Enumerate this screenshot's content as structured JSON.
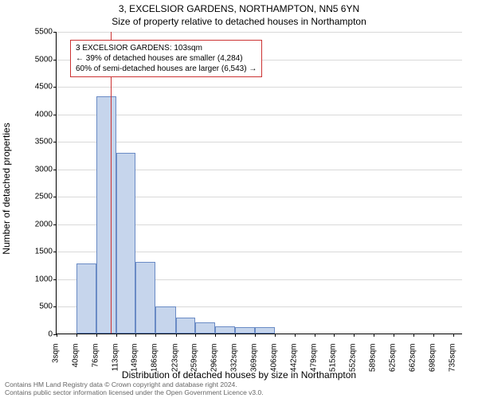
{
  "title_main": "3, EXCELSIOR GARDENS, NORTHAMPTON, NN5 6YN",
  "title_sub": "Size of property relative to detached houses in Northampton",
  "ylabel": "Number of detached properties",
  "xlabel": "Distribution of detached houses by size in Northampton",
  "footer_line1": "Contains HM Land Registry data © Crown copyright and database right 2024.",
  "footer_line2": "Contains public sector information licensed under the Open Government Licence v3.0.",
  "chart": {
    "type": "histogram",
    "background_color": "#ffffff",
    "grid_color": "#d9d9d9",
    "bar_fill": "#c6d5ec",
    "bar_border": "#6a8bc5",
    "ref_line_color": "#cc3333",
    "ref_line_x": 103,
    "ylim": [
      0,
      5500
    ],
    "ytick_step": 500,
    "yticks": [
      0,
      500,
      1000,
      1500,
      2000,
      2500,
      3000,
      3500,
      4000,
      4500,
      5000,
      5500
    ],
    "xlim": [
      3,
      753
    ],
    "xticks": [
      {
        "pos": 3,
        "label": "3sqm"
      },
      {
        "pos": 40,
        "label": "40sqm"
      },
      {
        "pos": 76,
        "label": "76sqm"
      },
      {
        "pos": 113,
        "label": "113sqm"
      },
      {
        "pos": 149,
        "label": "149sqm"
      },
      {
        "pos": 186,
        "label": "186sqm"
      },
      {
        "pos": 223,
        "label": "223sqm"
      },
      {
        "pos": 259,
        "label": "259sqm"
      },
      {
        "pos": 296,
        "label": "296sqm"
      },
      {
        "pos": 332,
        "label": "332sqm"
      },
      {
        "pos": 369,
        "label": "369sqm"
      },
      {
        "pos": 406,
        "label": "406sqm"
      },
      {
        "pos": 442,
        "label": "442sqm"
      },
      {
        "pos": 479,
        "label": "479sqm"
      },
      {
        "pos": 515,
        "label": "515sqm"
      },
      {
        "pos": 552,
        "label": "552sqm"
      },
      {
        "pos": 589,
        "label": "589sqm"
      },
      {
        "pos": 625,
        "label": "625sqm"
      },
      {
        "pos": 662,
        "label": "662sqm"
      },
      {
        "pos": 698,
        "label": "698sqm"
      },
      {
        "pos": 735,
        "label": "735sqm"
      }
    ],
    "bars": [
      {
        "x0": 40,
        "x1": 76,
        "value": 1280
      },
      {
        "x0": 76,
        "x1": 113,
        "value": 4320
      },
      {
        "x0": 113,
        "x1": 149,
        "value": 3280
      },
      {
        "x0": 149,
        "x1": 186,
        "value": 1300
      },
      {
        "x0": 186,
        "x1": 223,
        "value": 490
      },
      {
        "x0": 223,
        "x1": 259,
        "value": 290
      },
      {
        "x0": 259,
        "x1": 296,
        "value": 200
      },
      {
        "x0": 296,
        "x1": 332,
        "value": 130
      },
      {
        "x0": 332,
        "x1": 369,
        "value": 110
      },
      {
        "x0": 369,
        "x1": 406,
        "value": 120
      }
    ]
  },
  "annotation": {
    "line1": "3 EXCELSIOR GARDENS: 103sqm",
    "line2": "← 39% of detached houses are smaller (4,284)",
    "line3": "60% of semi-detached houses are larger (6,543) →",
    "border_color": "#cc3333"
  }
}
